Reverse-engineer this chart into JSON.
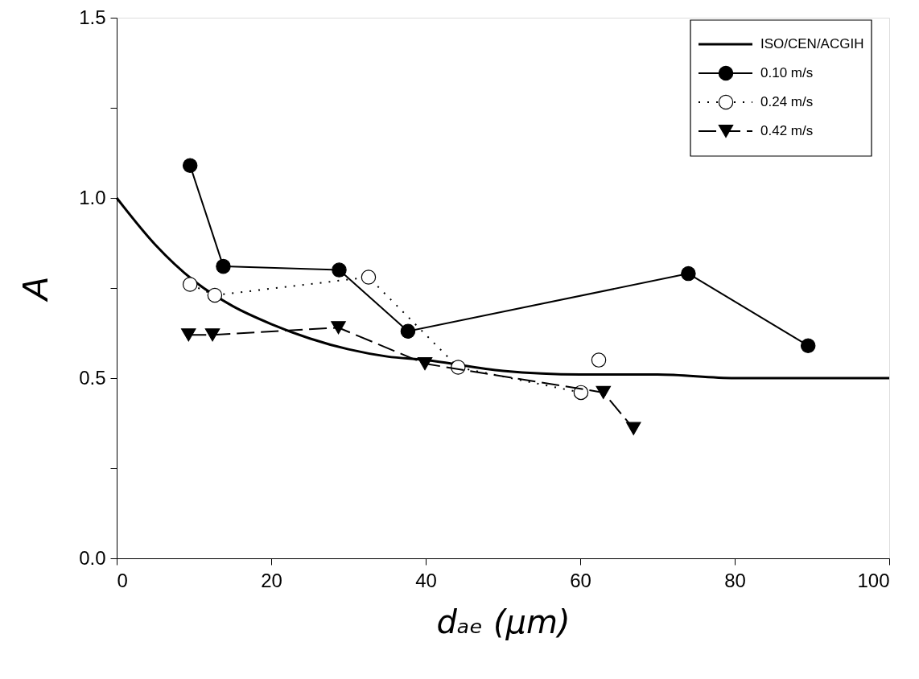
{
  "chart_data": {
    "type": "line",
    "xlabel": "dₐₑ (μm)",
    "ylabel": "A",
    "xlim": [
      0,
      100
    ],
    "ylim": [
      0,
      1.5
    ],
    "xticks": [
      0,
      20,
      40,
      60,
      80,
      100
    ],
    "yticks": [
      {
        "value": 0,
        "label": "0.0"
      },
      {
        "value": 0.25,
        "label": null
      },
      {
        "value": 0.5,
        "label": "0.5"
      },
      {
        "value": 0.75,
        "label": null
      },
      {
        "value": 1.0,
        "label": "1.0"
      },
      {
        "value": 1.25,
        "label": null
      },
      {
        "value": 1.5,
        "label": "1.5"
      }
    ],
    "grid": false,
    "legend": "top right",
    "series": [
      {
        "name": "ISO/CEN/ACGIH",
        "color": "#000000",
        "marker": "none",
        "line_style": "solid",
        "x": [
          0,
          5,
          10,
          15,
          20,
          25,
          30,
          35,
          40,
          50,
          60,
          70,
          80,
          90,
          100
        ],
        "values": [
          1.0,
          0.87,
          0.77,
          0.7,
          0.65,
          0.61,
          0.58,
          0.56,
          0.55,
          0.52,
          0.51,
          0.51,
          0.5,
          0.5,
          0.5
        ]
      },
      {
        "name": "0.10 m/s",
        "color": "#000000",
        "marker": "circle",
        "line_style": "solid",
        "x": [
          9.5,
          13.8,
          28.8,
          37.7,
          74.0,
          89.5
        ],
        "values": [
          1.09,
          0.81,
          0.8,
          0.63,
          0.79,
          0.59
        ]
      },
      {
        "name": "0.24 m/s",
        "color": "#ffffff",
        "marker": "circle",
        "line_style": "dotted",
        "x": [
          9.5,
          12.7,
          32.6,
          44.2,
          60.1,
          61.2,
          62.4
        ],
        "values": [
          0.76,
          0.73,
          0.78,
          0.53,
          0.46,
          null,
          0.55
        ]
      },
      {
        "name": "0.42 m/s",
        "color": "#000000",
        "marker": "triangle",
        "line_style": "dashed",
        "x": [
          9.3,
          12.4,
          28.7,
          39.9,
          63.0,
          66.9
        ],
        "values": [
          0.62,
          0.62,
          0.64,
          0.54,
          0.46,
          0.36
        ]
      }
    ]
  }
}
